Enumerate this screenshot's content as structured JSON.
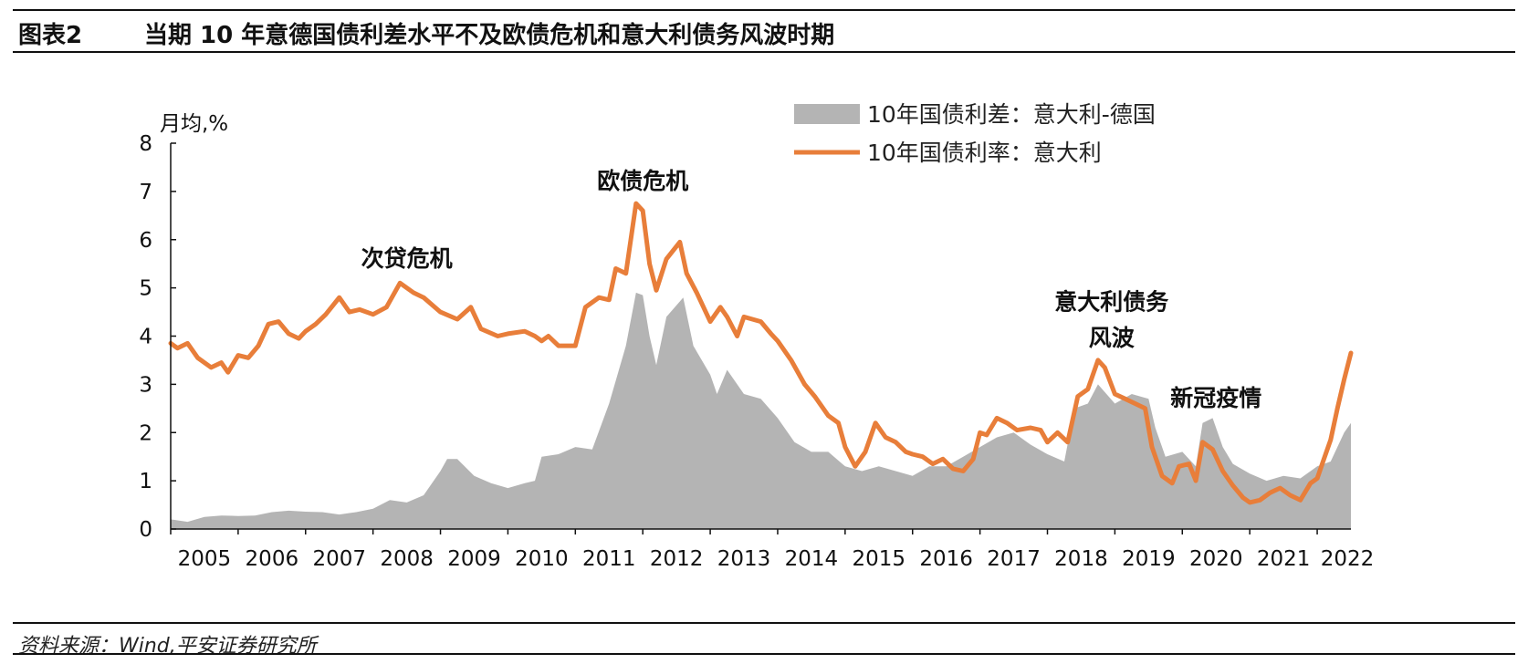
{
  "figure": {
    "label": "图表2",
    "title": "当期 10 年意德国债利差水平不及欧债危机和意大利债务风波时期",
    "source": "资料来源：Wind,平安证券研究所"
  },
  "chart_data": {
    "type": "area+line",
    "unit_label": "月均,%",
    "x_ticks": [
      "2005",
      "2006",
      "2007",
      "2008",
      "2009",
      "2010",
      "2011",
      "2012",
      "2013",
      "2014",
      "2015",
      "2016",
      "2017",
      "2018",
      "2019",
      "2020",
      "2021",
      "2022"
    ],
    "y_ticks": [
      "0",
      "1",
      "2",
      "3",
      "4",
      "5",
      "6",
      "7",
      "8"
    ],
    "ylim": [
      0,
      8
    ],
    "xlim": [
      2005.0,
      2022.5
    ],
    "grid": false,
    "legend_position": "top-right",
    "series": [
      {
        "name": "10年国债利差：意大利-德国",
        "kind": "area",
        "color": "#b4b4b4",
        "points": [
          [
            2005.0,
            0.2
          ],
          [
            2005.25,
            0.15
          ],
          [
            2005.5,
            0.25
          ],
          [
            2005.75,
            0.28
          ],
          [
            2006.0,
            0.27
          ],
          [
            2006.25,
            0.28
          ],
          [
            2006.5,
            0.35
          ],
          [
            2006.75,
            0.38
          ],
          [
            2007.0,
            0.36
          ],
          [
            2007.25,
            0.35
          ],
          [
            2007.5,
            0.3
          ],
          [
            2007.75,
            0.35
          ],
          [
            2008.0,
            0.42
          ],
          [
            2008.25,
            0.6
          ],
          [
            2008.5,
            0.55
          ],
          [
            2008.75,
            0.7
          ],
          [
            2009.0,
            1.2
          ],
          [
            2009.1,
            1.45
          ],
          [
            2009.25,
            1.45
          ],
          [
            2009.5,
            1.1
          ],
          [
            2009.75,
            0.95
          ],
          [
            2010.0,
            0.85
          ],
          [
            2010.25,
            0.95
          ],
          [
            2010.4,
            1.0
          ],
          [
            2010.5,
            1.5
          ],
          [
            2010.75,
            1.55
          ],
          [
            2011.0,
            1.7
          ],
          [
            2011.25,
            1.65
          ],
          [
            2011.5,
            2.6
          ],
          [
            2011.75,
            3.8
          ],
          [
            2011.9,
            4.9
          ],
          [
            2012.0,
            4.85
          ],
          [
            2012.1,
            4.0
          ],
          [
            2012.2,
            3.4
          ],
          [
            2012.35,
            4.4
          ],
          [
            2012.6,
            4.8
          ],
          [
            2012.75,
            3.8
          ],
          [
            2013.0,
            3.2
          ],
          [
            2013.1,
            2.8
          ],
          [
            2013.25,
            3.3
          ],
          [
            2013.5,
            2.8
          ],
          [
            2013.75,
            2.7
          ],
          [
            2014.0,
            2.3
          ],
          [
            2014.25,
            1.8
          ],
          [
            2014.5,
            1.6
          ],
          [
            2014.75,
            1.6
          ],
          [
            2015.0,
            1.3
          ],
          [
            2015.25,
            1.2
          ],
          [
            2015.5,
            1.3
          ],
          [
            2015.75,
            1.2
          ],
          [
            2016.0,
            1.1
          ],
          [
            2016.25,
            1.3
          ],
          [
            2016.5,
            1.3
          ],
          [
            2016.75,
            1.5
          ],
          [
            2017.0,
            1.7
          ],
          [
            2017.25,
            1.9
          ],
          [
            2017.5,
            2.0
          ],
          [
            2017.75,
            1.75
          ],
          [
            2018.0,
            1.55
          ],
          [
            2018.25,
            1.4
          ],
          [
            2018.4,
            2.5
          ],
          [
            2018.6,
            2.6
          ],
          [
            2018.75,
            3.0
          ],
          [
            2019.0,
            2.6
          ],
          [
            2019.25,
            2.8
          ],
          [
            2019.5,
            2.7
          ],
          [
            2019.6,
            2.1
          ],
          [
            2019.75,
            1.5
          ],
          [
            2020.0,
            1.6
          ],
          [
            2020.2,
            1.3
          ],
          [
            2020.3,
            2.2
          ],
          [
            2020.45,
            2.3
          ],
          [
            2020.6,
            1.7
          ],
          [
            2020.75,
            1.35
          ],
          [
            2021.0,
            1.15
          ],
          [
            2021.25,
            1.0
          ],
          [
            2021.5,
            1.1
          ],
          [
            2021.75,
            1.05
          ],
          [
            2022.0,
            1.3
          ],
          [
            2022.2,
            1.4
          ],
          [
            2022.4,
            2.0
          ],
          [
            2022.5,
            2.2
          ]
        ]
      },
      {
        "name": "10年国债利率：意大利",
        "kind": "line",
        "color": "#e87e3a",
        "points": [
          [
            2005.0,
            3.85
          ],
          [
            2005.1,
            3.75
          ],
          [
            2005.25,
            3.85
          ],
          [
            2005.4,
            3.55
          ],
          [
            2005.6,
            3.35
          ],
          [
            2005.75,
            3.45
          ],
          [
            2005.85,
            3.25
          ],
          [
            2006.0,
            3.6
          ],
          [
            2006.15,
            3.55
          ],
          [
            2006.3,
            3.8
          ],
          [
            2006.45,
            4.25
          ],
          [
            2006.6,
            4.3
          ],
          [
            2006.75,
            4.05
          ],
          [
            2006.9,
            3.95
          ],
          [
            2007.0,
            4.1
          ],
          [
            2007.15,
            4.25
          ],
          [
            2007.3,
            4.45
          ],
          [
            2007.5,
            4.8
          ],
          [
            2007.65,
            4.5
          ],
          [
            2007.8,
            4.55
          ],
          [
            2008.0,
            4.45
          ],
          [
            2008.2,
            4.6
          ],
          [
            2008.4,
            5.1
          ],
          [
            2008.6,
            4.9
          ],
          [
            2008.75,
            4.8
          ],
          [
            2009.0,
            4.5
          ],
          [
            2009.25,
            4.35
          ],
          [
            2009.45,
            4.6
          ],
          [
            2009.6,
            4.15
          ],
          [
            2009.85,
            4.0
          ],
          [
            2010.0,
            4.05
          ],
          [
            2010.25,
            4.1
          ],
          [
            2010.4,
            4.0
          ],
          [
            2010.5,
            3.9
          ],
          [
            2010.6,
            4.0
          ],
          [
            2010.75,
            3.8
          ],
          [
            2011.0,
            3.8
          ],
          [
            2011.15,
            4.6
          ],
          [
            2011.35,
            4.8
          ],
          [
            2011.5,
            4.75
          ],
          [
            2011.6,
            5.4
          ],
          [
            2011.75,
            5.3
          ],
          [
            2011.9,
            6.75
          ],
          [
            2012.0,
            6.6
          ],
          [
            2012.1,
            5.5
          ],
          [
            2012.2,
            4.95
          ],
          [
            2012.35,
            5.6
          ],
          [
            2012.55,
            5.95
          ],
          [
            2012.65,
            5.3
          ],
          [
            2012.8,
            4.9
          ],
          [
            2013.0,
            4.3
          ],
          [
            2013.15,
            4.6
          ],
          [
            2013.25,
            4.4
          ],
          [
            2013.4,
            4.0
          ],
          [
            2013.5,
            4.4
          ],
          [
            2013.75,
            4.3
          ],
          [
            2013.9,
            4.05
          ],
          [
            2014.0,
            3.9
          ],
          [
            2014.2,
            3.5
          ],
          [
            2014.4,
            3.0
          ],
          [
            2014.55,
            2.75
          ],
          [
            2014.75,
            2.35
          ],
          [
            2014.9,
            2.2
          ],
          [
            2015.0,
            1.7
          ],
          [
            2015.15,
            1.3
          ],
          [
            2015.3,
            1.6
          ],
          [
            2015.45,
            2.2
          ],
          [
            2015.6,
            1.9
          ],
          [
            2015.75,
            1.8
          ],
          [
            2015.9,
            1.6
          ],
          [
            2016.0,
            1.55
          ],
          [
            2016.15,
            1.5
          ],
          [
            2016.3,
            1.35
          ],
          [
            2016.45,
            1.45
          ],
          [
            2016.6,
            1.25
          ],
          [
            2016.75,
            1.2
          ],
          [
            2016.9,
            1.45
          ],
          [
            2017.0,
            2.0
          ],
          [
            2017.1,
            1.95
          ],
          [
            2017.25,
            2.3
          ],
          [
            2017.4,
            2.2
          ],
          [
            2017.55,
            2.05
          ],
          [
            2017.75,
            2.1
          ],
          [
            2017.9,
            2.05
          ],
          [
            2018.0,
            1.8
          ],
          [
            2018.15,
            2.0
          ],
          [
            2018.3,
            1.8
          ],
          [
            2018.45,
            2.75
          ],
          [
            2018.6,
            2.9
          ],
          [
            2018.75,
            3.5
          ],
          [
            2018.85,
            3.35
          ],
          [
            2019.0,
            2.8
          ],
          [
            2019.15,
            2.7
          ],
          [
            2019.3,
            2.6
          ],
          [
            2019.45,
            2.5
          ],
          [
            2019.55,
            1.7
          ],
          [
            2019.7,
            1.1
          ],
          [
            2019.85,
            0.95
          ],
          [
            2019.95,
            1.3
          ],
          [
            2020.1,
            1.35
          ],
          [
            2020.2,
            1.0
          ],
          [
            2020.3,
            1.8
          ],
          [
            2020.45,
            1.65
          ],
          [
            2020.6,
            1.2
          ],
          [
            2020.75,
            0.9
          ],
          [
            2020.9,
            0.65
          ],
          [
            2021.0,
            0.55
          ],
          [
            2021.15,
            0.6
          ],
          [
            2021.3,
            0.75
          ],
          [
            2021.45,
            0.85
          ],
          [
            2021.6,
            0.7
          ],
          [
            2021.75,
            0.6
          ],
          [
            2021.9,
            0.95
          ],
          [
            2022.0,
            1.05
          ],
          [
            2022.1,
            1.45
          ],
          [
            2022.2,
            1.85
          ],
          [
            2022.3,
            2.5
          ],
          [
            2022.4,
            3.1
          ],
          [
            2022.5,
            3.65
          ]
        ]
      }
    ],
    "annotations": [
      {
        "text": "次贷危机",
        "x": 2008.5,
        "y": 5.45,
        "line": 1
      },
      {
        "text": "欧债危机",
        "x": 2012.0,
        "y": 7.05,
        "line": 1
      },
      {
        "text": "意大利债务",
        "x": 2018.95,
        "y": 4.55,
        "line": 1
      },
      {
        "text": "风波",
        "x": 2018.95,
        "y": 3.8,
        "line": 2
      },
      {
        "text": "新冠疫情",
        "x": 2020.5,
        "y": 2.55,
        "line": 1
      }
    ]
  }
}
